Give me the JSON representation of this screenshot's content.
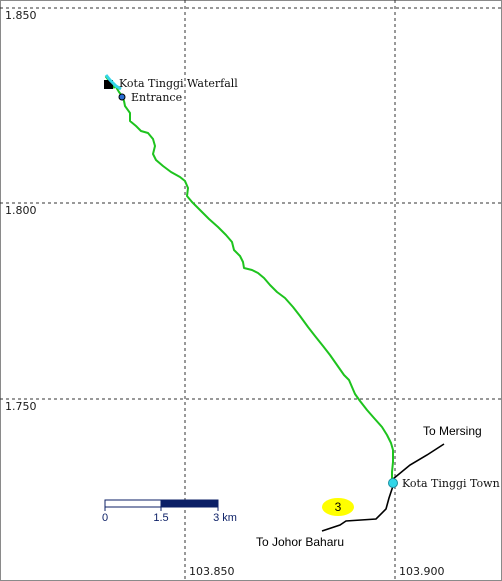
{
  "map": {
    "grid_labels": {
      "lat_top": "1.850",
      "lat_mid": "1.800",
      "lat_low": "1.750",
      "lon_left": "103.850",
      "lon_right": "103.900"
    },
    "places": {
      "waterfall": "Kota Tinggi Waterfall",
      "entrance": "Entrance",
      "town": "Kota Tinggi Town"
    },
    "roads": {
      "mersing": "To Mersing",
      "johor": "To Johor Baharu"
    },
    "route_badge": "3",
    "scale_bar": {
      "label_0": "0",
      "label_1": "1.5",
      "label_2": "3 km"
    },
    "colors": {
      "trail": "#1ec31e",
      "grid": "#333333",
      "marker": "#33d6e8",
      "badge": "#ffff00",
      "scale_fill": "#0b1f66"
    }
  }
}
